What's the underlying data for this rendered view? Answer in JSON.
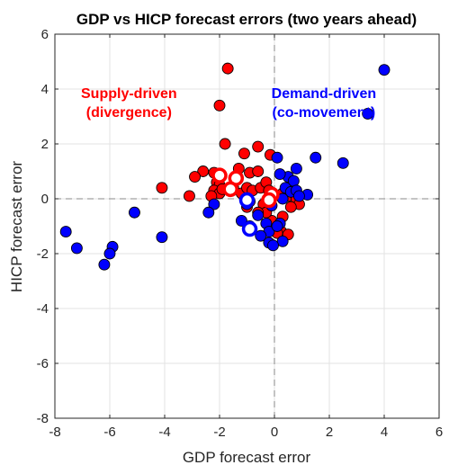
{
  "chart_data": {
    "type": "scatter",
    "title": "GDP vs HICP forecast errors (two years ahead)",
    "xlabel": "GDP forecast error",
    "ylabel": "HICP forecast error",
    "xlim": [
      -8,
      6
    ],
    "ylim": [
      -8,
      6
    ],
    "xticks": [
      "-8",
      "-6",
      "-4",
      "-2",
      "0",
      "2",
      "4",
      "6"
    ],
    "yticks": [
      "-8",
      "-6",
      "-4",
      "-2",
      "0",
      "2",
      "4",
      "6"
    ],
    "grid": true,
    "reference_lines": {
      "x": 0,
      "y": 0,
      "style": "dashed"
    },
    "colors": {
      "supply": "#ff0000",
      "demand": "#0000ff",
      "axis": "#262626",
      "grid": "#e3e3e3"
    },
    "annotations": [
      {
        "lines": [
          "Supply-driven",
          "(divergence)"
        ],
        "color": "#ff0000",
        "x": -5.3,
        "y": 3.5
      },
      {
        "lines": [
          "Demand-driven",
          "(co-movement)"
        ],
        "color": "#0000ff",
        "x": 1.8,
        "y": 3.5
      }
    ],
    "series": [
      {
        "group": "supply",
        "marker": "filled",
        "color": "#ff0000",
        "points": [
          [
            -1.7,
            4.75
          ],
          [
            -2.0,
            3.4
          ],
          [
            -1.8,
            2.0
          ],
          [
            -0.15,
            1.6
          ],
          [
            -1.1,
            1.65
          ],
          [
            -0.6,
            1.9
          ],
          [
            -1.3,
            1.1
          ],
          [
            -0.9,
            0.95
          ],
          [
            -0.6,
            1.0
          ],
          [
            -2.6,
            1.0
          ],
          [
            -2.9,
            0.8
          ],
          [
            -2.2,
            0.95
          ],
          [
            -2.1,
            0.6
          ],
          [
            -2.0,
            0.5
          ],
          [
            -2.2,
            0.3
          ],
          [
            -2.0,
            0.2
          ],
          [
            -1.9,
            0.35
          ],
          [
            -1.5,
            0.4
          ],
          [
            -1.2,
            0.2
          ],
          [
            -1.0,
            0.4
          ],
          [
            -0.8,
            0.3
          ],
          [
            -0.5,
            0.4
          ],
          [
            -0.3,
            0.6
          ],
          [
            -0.2,
            0.3
          ],
          [
            -4.1,
            0.4
          ],
          [
            -3.1,
            0.1
          ],
          [
            -2.3,
            0.1
          ],
          [
            -0.9,
            -0.1
          ],
          [
            -0.4,
            -0.2
          ],
          [
            0.3,
            0.2
          ],
          [
            0.5,
            0.1
          ],
          [
            0.8,
            0.0
          ],
          [
            0.9,
            -0.2
          ],
          [
            0.6,
            -0.3
          ],
          [
            0.3,
            -0.65
          ],
          [
            0.25,
            -1.2
          ],
          [
            0.5,
            -1.3
          ],
          [
            0.1,
            -1.25
          ],
          [
            -0.1,
            -0.8
          ],
          [
            -0.3,
            -0.5
          ],
          [
            -0.6,
            -0.5
          ],
          [
            -1.0,
            -0.3
          ]
        ]
      },
      {
        "group": "demand",
        "marker": "filled",
        "color": "#0000ff",
        "points": [
          [
            4.0,
            4.7
          ],
          [
            3.4,
            3.1
          ],
          [
            2.5,
            1.3
          ],
          [
            1.5,
            1.5
          ],
          [
            0.8,
            1.1
          ],
          [
            0.5,
            0.8
          ],
          [
            0.2,
            0.9
          ],
          [
            0.7,
            0.65
          ],
          [
            0.1,
            1.5
          ],
          [
            0.4,
            0.4
          ],
          [
            0.6,
            0.25
          ],
          [
            0.8,
            0.3
          ],
          [
            1.2,
            0.15
          ],
          [
            0.9,
            0.1
          ],
          [
            0.3,
            0.0
          ],
          [
            -0.1,
            -0.25
          ],
          [
            -1.0,
            -0.2
          ],
          [
            -0.6,
            -0.6
          ],
          [
            -0.3,
            -0.9
          ],
          [
            -0.2,
            -1.2
          ],
          [
            -0.2,
            -1.6
          ],
          [
            0.3,
            -1.55
          ],
          [
            0.2,
            -0.9
          ],
          [
            -2.2,
            -0.2
          ],
          [
            -2.4,
            -0.5
          ],
          [
            -1.2,
            -0.8
          ],
          [
            -0.9,
            -1.0
          ],
          [
            -0.5,
            -1.35
          ],
          [
            -0.05,
            -1.7
          ],
          [
            0.1,
            -1.0
          ],
          [
            -5.1,
            -0.5
          ],
          [
            -4.1,
            -1.4
          ],
          [
            -5.9,
            -1.75
          ],
          [
            -6.0,
            -2.0
          ],
          [
            -6.2,
            -2.4
          ],
          [
            -7.2,
            -1.8
          ],
          [
            -7.6,
            -1.2
          ]
        ]
      },
      {
        "group": "supply",
        "marker": "hollow",
        "color": "#ff0000",
        "points": [
          [
            -2.0,
            0.85
          ],
          [
            -1.4,
            0.75
          ],
          [
            -1.6,
            0.35
          ],
          [
            -0.1,
            0.15
          ],
          [
            -0.2,
            -0.05
          ]
        ]
      },
      {
        "group": "demand",
        "marker": "hollow",
        "color": "#0000ff",
        "points": [
          [
            -1.0,
            -0.05
          ],
          [
            -0.9,
            -1.1
          ]
        ]
      }
    ]
  }
}
